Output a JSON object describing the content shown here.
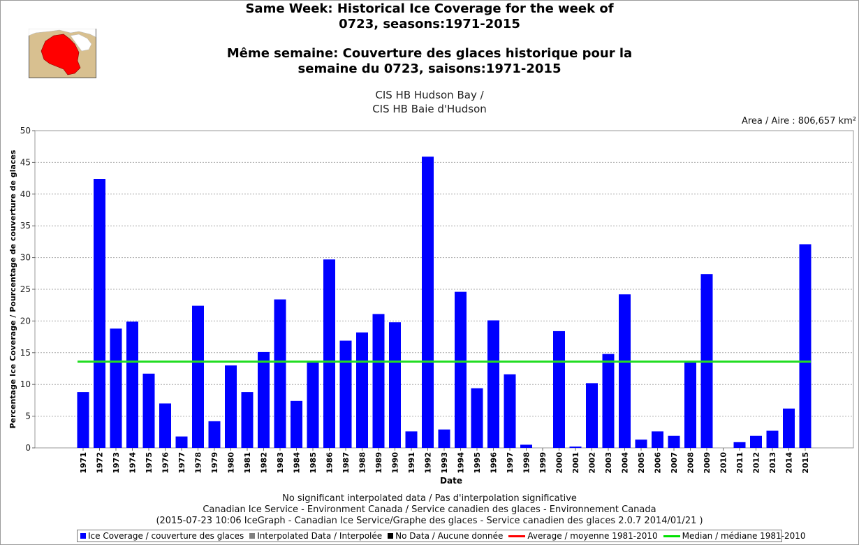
{
  "title": {
    "en": [
      "Same Week: Historical Ice Coverage for the week of",
      "0723, seasons:1971-2015"
    ],
    "fr": [
      "Même semaine: Couverture des glaces historique pour la",
      "semaine du 0723, saisons:1971-2015"
    ]
  },
  "subtitle": [
    "CIS HB Hudson Bay /",
    "CIS HB Baie d'Hudson"
  ],
  "area_label": "Area / Aire : 806,657 km²",
  "footer": [
    "No significant interpolated data / Pas d'interpolation significative",
    "Canadian Ice Service - Environment Canada / Service canadien des glaces - Environnement Canada",
    "(2015-07-23 10:06 IceGraph - Canadian Ice Service/Graphe des glaces - Service canadien des glaces 2.0.7 2014/01/21 )"
  ],
  "legend": [
    {
      "label": "Ice Coverage / couverture des glaces",
      "kind": "box",
      "color": "#0000ff"
    },
    {
      "label": "Interpolated Data / Interpolée",
      "kind": "box",
      "color": "#808080"
    },
    {
      "label": "No Data / Aucune donnée",
      "kind": "box",
      "color": "#000000"
    },
    {
      "label": "Average / moyenne 1981-2010",
      "kind": "line",
      "color": "#ff0000"
    },
    {
      "label": "Median / médiane 1981-2010",
      "kind": "line",
      "color": "#00e000"
    }
  ],
  "colors": {
    "bar": "#0000ff",
    "median": "#22dd22",
    "plot_bg": "#ffffff",
    "map_land": "#d8c090",
    "map_region": "#ff0000"
  },
  "chart_data": {
    "type": "bar",
    "xlabel": "Date",
    "ylabel": "Percentage Ice Coverage / Pourcentage de couverture de glaces",
    "ylim": [
      0,
      50
    ],
    "yticks": [
      0,
      5,
      10,
      15,
      20,
      25,
      30,
      35,
      40,
      45,
      50
    ],
    "grid": true,
    "categories": [
      "1971",
      "1972",
      "1973",
      "1974",
      "1975",
      "1976",
      "1977",
      "1978",
      "1979",
      "1980",
      "1981",
      "1982",
      "1983",
      "1984",
      "1985",
      "1986",
      "1987",
      "1988",
      "1989",
      "1990",
      "1991",
      "1992",
      "1993",
      "1994",
      "1995",
      "1996",
      "1997",
      "1998",
      "1999",
      "2000",
      "2001",
      "2002",
      "2003",
      "2004",
      "2005",
      "2006",
      "2007",
      "2008",
      "2009",
      "2010",
      "2011",
      "2012",
      "2013",
      "2014",
      "2015"
    ],
    "series": [
      {
        "name": "Ice Coverage / couverture des glaces",
        "values": [
          8.8,
          42.4,
          18.8,
          19.9,
          11.7,
          7.0,
          1.8,
          22.4,
          4.2,
          13.0,
          8.8,
          15.1,
          23.4,
          7.4,
          13.6,
          29.7,
          16.9,
          18.2,
          21.1,
          19.8,
          2.6,
          45.9,
          2.9,
          24.6,
          9.4,
          20.1,
          11.6,
          0.5,
          0.0,
          18.4,
          0.2,
          10.2,
          14.8,
          24.2,
          1.3,
          2.6,
          1.9,
          13.6,
          27.4,
          0.0,
          0.9,
          1.9,
          2.7,
          6.2,
          32.1
        ]
      }
    ],
    "median_1981_2010": 13.6
  }
}
